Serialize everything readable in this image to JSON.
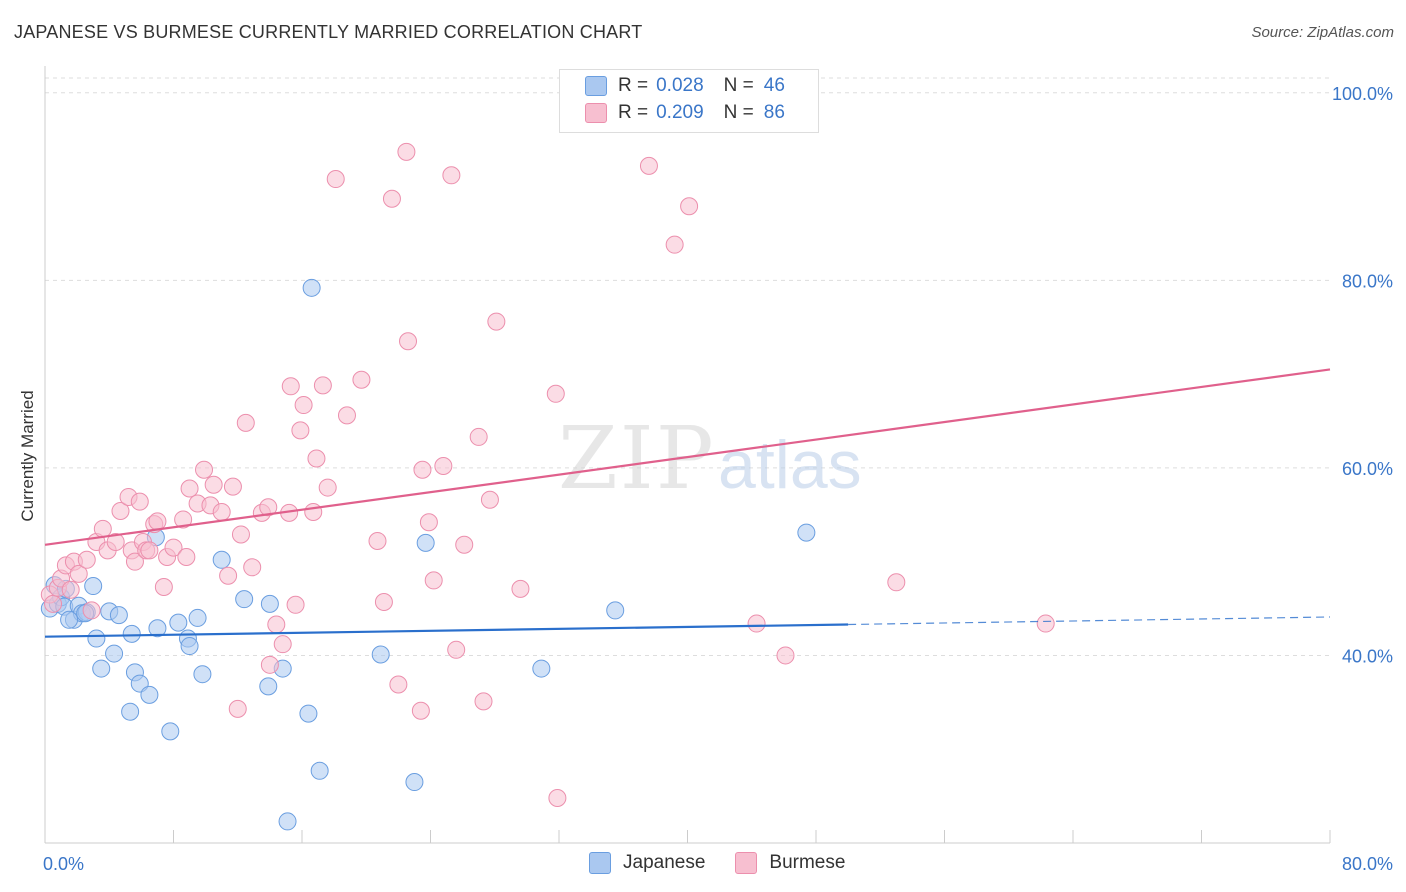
{
  "chart_data": {
    "type": "scatter",
    "title": "JAPANESE VS BURMESE CURRENTLY MARRIED CORRELATION CHART",
    "source": "Source: ZipAtlas.com",
    "xlabel": "",
    "ylabel": "Currently Married",
    "xlim": [
      0,
      80
    ],
    "ylim": [
      20,
      102
    ],
    "x_tick_labels": [
      "0.0%",
      "80.0%"
    ],
    "y_tick_values": [
      40,
      60,
      80,
      100
    ],
    "y_tick_labels": [
      "40.0%",
      "60.0%",
      "80.0%",
      "100.0%"
    ],
    "watermark": {
      "zip": "ZIP",
      "atlas": "atlas"
    },
    "colors": {
      "japanese_fill": "#aac8f0",
      "japanese_stroke": "#6a9ee0",
      "japanese_line": "#2a6fcc",
      "burmese_fill": "#f7bfd0",
      "burmese_stroke": "#ec8fad",
      "burmese_line": "#e0608c",
      "tick_text": "#3a76c8",
      "grid": "#dddddd"
    },
    "legend": {
      "r_label": "R =",
      "n_label": "N =",
      "entries": [
        {
          "name": "Japanese",
          "r": "0.028",
          "n": "46"
        },
        {
          "name": "Burmese",
          "r": "0.209",
          "n": "86"
        }
      ]
    },
    "series": [
      {
        "name": "Japanese",
        "r": 0.028,
        "n": 46,
        "trend": {
          "x": [
            0,
            50
          ],
          "y": [
            42.0,
            43.3
          ]
        },
        "trend_dashed": {
          "x": [
            50,
            80
          ],
          "y": [
            43.3,
            44.1
          ]
        },
        "points": [
          [
            0.3,
            45.0
          ],
          [
            0.6,
            47.5
          ],
          [
            0.8,
            45.5
          ],
          [
            1.0,
            46.2
          ],
          [
            1.2,
            45.2
          ],
          [
            1.3,
            47.1
          ],
          [
            1.8,
            43.8
          ],
          [
            2.1,
            45.3
          ],
          [
            2.3,
            44.5
          ],
          [
            2.6,
            44.6
          ],
          [
            3.0,
            47.4
          ],
          [
            3.2,
            41.8
          ],
          [
            3.5,
            38.6
          ],
          [
            4.0,
            44.7
          ],
          [
            4.3,
            40.2
          ],
          [
            4.6,
            44.3
          ],
          [
            5.3,
            34.0
          ],
          [
            5.4,
            42.3
          ],
          [
            5.6,
            38.2
          ],
          [
            5.9,
            37.0
          ],
          [
            6.5,
            35.8
          ],
          [
            6.9,
            52.6
          ],
          [
            7.0,
            42.9
          ],
          [
            7.8,
            31.9
          ],
          [
            8.3,
            43.5
          ],
          [
            8.9,
            41.8
          ],
          [
            9.0,
            41.0
          ],
          [
            9.5,
            44.0
          ],
          [
            9.8,
            38.0
          ],
          [
            11.0,
            50.2
          ],
          [
            12.4,
            46.0
          ],
          [
            13.9,
            36.7
          ],
          [
            14.0,
            45.5
          ],
          [
            14.8,
            38.6
          ],
          [
            15.1,
            22.3
          ],
          [
            16.4,
            33.8
          ],
          [
            16.6,
            79.2
          ],
          [
            17.1,
            27.7
          ],
          [
            20.9,
            40.1
          ],
          [
            23.0,
            26.5
          ],
          [
            23.7,
            52.0
          ],
          [
            30.9,
            38.6
          ],
          [
            35.5,
            44.8
          ],
          [
            47.4,
            53.1
          ],
          [
            2.5,
            44.5
          ],
          [
            1.5,
            43.8
          ]
        ]
      },
      {
        "name": "Burmese",
        "r": 0.209,
        "n": 86,
        "trend": {
          "x": [
            0,
            80
          ],
          "y": [
            51.8,
            70.5
          ]
        },
        "points": [
          [
            0.3,
            46.5
          ],
          [
            0.5,
            45.5
          ],
          [
            0.8,
            47.2
          ],
          [
            1.0,
            48.2
          ],
          [
            1.3,
            49.6
          ],
          [
            1.6,
            47.0
          ],
          [
            1.8,
            50.0
          ],
          [
            2.1,
            48.7
          ],
          [
            2.6,
            50.2
          ],
          [
            2.9,
            44.8
          ],
          [
            3.2,
            52.1
          ],
          [
            3.6,
            53.5
          ],
          [
            3.9,
            51.2
          ],
          [
            4.4,
            52.1
          ],
          [
            4.7,
            55.4
          ],
          [
            5.2,
            56.9
          ],
          [
            5.4,
            51.2
          ],
          [
            5.6,
            50.0
          ],
          [
            5.9,
            56.4
          ],
          [
            6.1,
            52.1
          ],
          [
            6.3,
            51.2
          ],
          [
            6.5,
            51.2
          ],
          [
            6.8,
            54.0
          ],
          [
            7.0,
            54.3
          ],
          [
            7.4,
            47.3
          ],
          [
            7.6,
            50.5
          ],
          [
            8.0,
            51.5
          ],
          [
            8.6,
            54.5
          ],
          [
            8.8,
            50.5
          ],
          [
            9.0,
            57.8
          ],
          [
            9.5,
            56.2
          ],
          [
            9.9,
            59.8
          ],
          [
            10.3,
            56.0
          ],
          [
            10.5,
            58.2
          ],
          [
            11.0,
            55.3
          ],
          [
            11.4,
            48.5
          ],
          [
            11.7,
            58.0
          ],
          [
            12.0,
            34.3
          ],
          [
            12.2,
            52.9
          ],
          [
            12.5,
            64.8
          ],
          [
            12.9,
            49.4
          ],
          [
            13.5,
            55.2
          ],
          [
            13.9,
            55.8
          ],
          [
            14.0,
            39.0
          ],
          [
            14.4,
            43.3
          ],
          [
            14.8,
            41.2
          ],
          [
            15.2,
            55.2
          ],
          [
            15.3,
            68.7
          ],
          [
            15.6,
            45.4
          ],
          [
            15.9,
            64.0
          ],
          [
            16.1,
            66.7
          ],
          [
            16.7,
            55.3
          ],
          [
            16.9,
            61.0
          ],
          [
            17.3,
            68.8
          ],
          [
            17.6,
            57.9
          ],
          [
            18.1,
            90.8
          ],
          [
            18.8,
            65.6
          ],
          [
            19.7,
            69.4
          ],
          [
            20.7,
            52.2
          ],
          [
            21.1,
            45.7
          ],
          [
            21.6,
            88.7
          ],
          [
            22.0,
            36.9
          ],
          [
            22.5,
            93.7
          ],
          [
            22.6,
            73.5
          ],
          [
            23.4,
            34.1
          ],
          [
            23.5,
            59.8
          ],
          [
            23.9,
            54.2
          ],
          [
            24.2,
            48.0
          ],
          [
            24.8,
            60.2
          ],
          [
            25.3,
            91.2
          ],
          [
            25.6,
            40.6
          ],
          [
            26.1,
            51.8
          ],
          [
            27.0,
            63.3
          ],
          [
            27.3,
            35.1
          ],
          [
            27.7,
            56.6
          ],
          [
            28.1,
            75.6
          ],
          [
            29.6,
            47.1
          ],
          [
            31.8,
            67.9
          ],
          [
            31.9,
            24.8
          ],
          [
            37.6,
            92.2
          ],
          [
            39.2,
            83.8
          ],
          [
            40.1,
            87.9
          ],
          [
            46.1,
            40.0
          ],
          [
            53.0,
            47.8
          ],
          [
            62.3,
            43.4
          ],
          [
            44.3,
            43.4
          ]
        ]
      }
    ]
  }
}
